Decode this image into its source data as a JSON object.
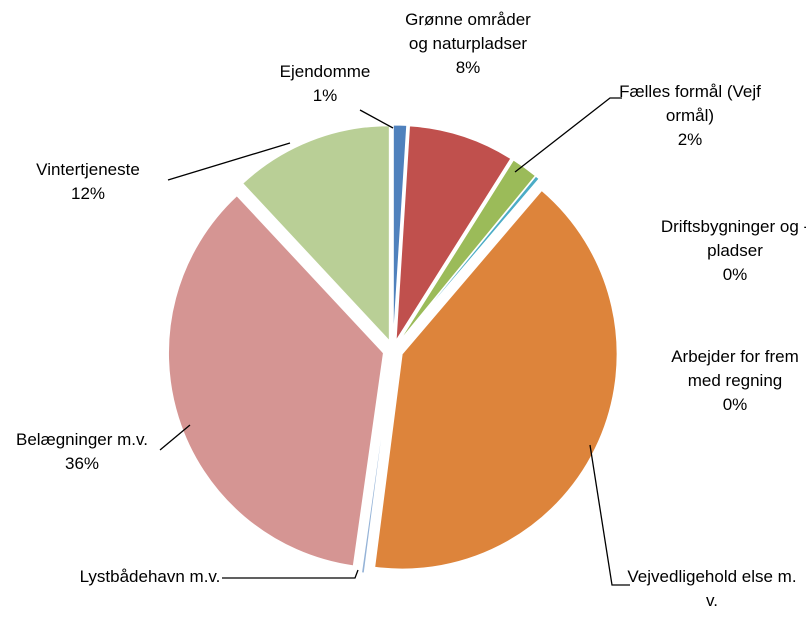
{
  "chart_data": {
    "type": "pie",
    "categories": [
      "Ejendomme",
      "Grønne områder og naturpladser",
      "Fælles formål (Vejformål)",
      "Driftsbygninger og -pladser",
      "Arbejder for fremmed regning",
      "Vejvedligehold else m.v.",
      "Lystbådehavn m.v.",
      "Belægninger m.v.",
      "Vintertjeneste"
    ],
    "values": [
      1,
      8,
      2,
      0,
      0.3,
      41,
      0.2,
      36,
      12
    ],
    "value_labels": [
      "1%",
      "8%",
      "2%",
      "0%",
      "0%",
      null,
      null,
      "36%",
      "12%"
    ],
    "colors": [
      "#4f81bd",
      "#c0504d",
      "#9bbb59",
      "#8064a2",
      "#4bacc6",
      "#dd843b",
      "#95b3d7",
      "#d59593",
      "#b9cf96"
    ]
  }
}
